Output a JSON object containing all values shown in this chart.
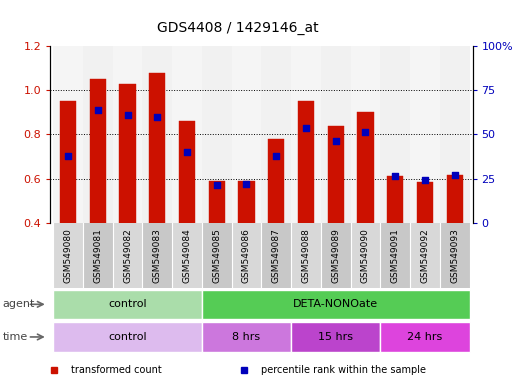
{
  "title": "GDS4408 / 1429146_at",
  "samples": [
    "GSM549080",
    "GSM549081",
    "GSM549082",
    "GSM549083",
    "GSM549084",
    "GSM549085",
    "GSM549086",
    "GSM549087",
    "GSM549088",
    "GSM549089",
    "GSM549090",
    "GSM549091",
    "GSM549092",
    "GSM549093"
  ],
  "red_values": [
    0.95,
    1.05,
    1.03,
    1.08,
    0.86,
    0.59,
    0.59,
    0.78,
    0.95,
    0.84,
    0.9,
    0.61,
    0.585,
    0.615
  ],
  "blue_values": [
    0.7,
    0.91,
    0.89,
    0.88,
    0.72,
    0.57,
    0.575,
    0.7,
    0.83,
    0.77,
    0.81,
    0.61,
    0.595,
    0.615
  ],
  "ymin": 0.4,
  "ymax": 1.2,
  "y2min": 0,
  "y2max": 100,
  "yticks": [
    0.4,
    0.6,
    0.8,
    1.0,
    1.2
  ],
  "y2ticks": [
    0,
    25,
    50,
    75,
    100
  ],
  "y2ticklabels": [
    "0",
    "25",
    "50",
    "75",
    "100%"
  ],
  "bar_color": "#cc1100",
  "dot_color": "#0000bb",
  "agent_groups": [
    {
      "label": "control",
      "start": 0,
      "end": 4,
      "color": "#aaddaa"
    },
    {
      "label": "DETA-NONOate",
      "start": 5,
      "end": 13,
      "color": "#55cc55"
    }
  ],
  "time_groups": [
    {
      "label": "control",
      "start": 0,
      "end": 4,
      "color": "#ddbbee"
    },
    {
      "label": "8 hrs",
      "start": 5,
      "end": 7,
      "color": "#cc77dd"
    },
    {
      "label": "15 hrs",
      "start": 8,
      "end": 10,
      "color": "#bb44cc"
    },
    {
      "label": "24 hrs",
      "start": 11,
      "end": 13,
      "color": "#dd44dd"
    }
  ],
  "legend_items": [
    {
      "label": "transformed count",
      "color": "#cc1100",
      "marker": "s"
    },
    {
      "label": "percentile rank within the sample",
      "color": "#0000bb",
      "marker": "s"
    }
  ],
  "tick_label_color": "#cc1100",
  "y2tick_color": "#0000bb",
  "bar_width": 0.55,
  "agent_label": "agent",
  "time_label": "time",
  "sample_bg_even": "#d8d8d8",
  "sample_bg_odd": "#c8c8c8"
}
